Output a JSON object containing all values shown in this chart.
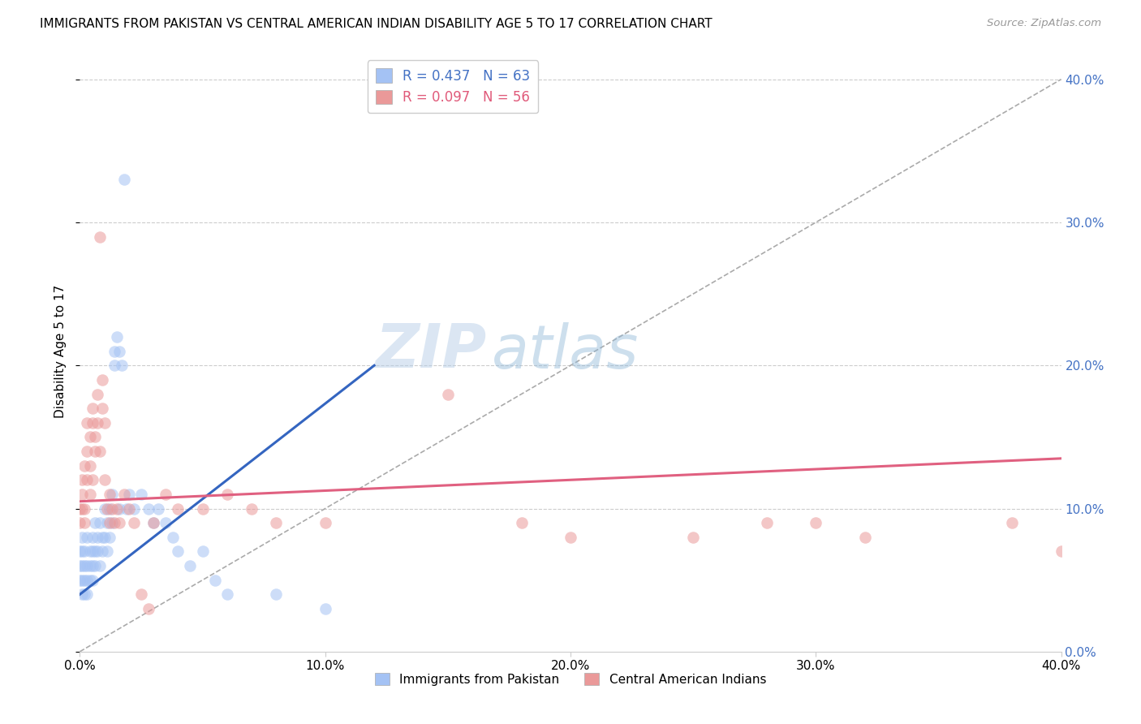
{
  "title": "IMMIGRANTS FROM PAKISTAN VS CENTRAL AMERICAN INDIAN DISABILITY AGE 5 TO 17 CORRELATION CHART",
  "source": "Source: ZipAtlas.com",
  "ylabel": "Disability Age 5 to 17",
  "xlim": [
    0.0,
    0.4
  ],
  "ylim": [
    0.0,
    0.42
  ],
  "grid_color": "#cccccc",
  "watermark_zip": "ZIP",
  "watermark_atlas": "atlas",
  "series1_color": "#a4c2f4",
  "series2_color": "#ea9999",
  "series1_label": "Immigrants from Pakistan",
  "series2_label": "Central American Indians",
  "series1_R": 0.437,
  "series1_N": 63,
  "series2_R": 0.097,
  "series2_N": 56,
  "diagonal_line_color": "#aaaaaa",
  "trendline1_color": "#3465c0",
  "trendline2_color": "#e06080",
  "trendline1_x0": 0.0,
  "trendline1_y0": 0.04,
  "trendline1_x1": 0.12,
  "trendline1_y1": 0.2,
  "trendline2_x0": 0.0,
  "trendline2_y0": 0.105,
  "trendline2_x1": 0.4,
  "trendline2_y1": 0.135,
  "blue_dots": [
    [
      0.0,
      0.07
    ],
    [
      0.0,
      0.05
    ],
    [
      0.0,
      0.06
    ],
    [
      0.001,
      0.06
    ],
    [
      0.001,
      0.05
    ],
    [
      0.001,
      0.04
    ],
    [
      0.001,
      0.07
    ],
    [
      0.001,
      0.08
    ],
    [
      0.002,
      0.05
    ],
    [
      0.002,
      0.06
    ],
    [
      0.002,
      0.04
    ],
    [
      0.002,
      0.07
    ],
    [
      0.003,
      0.06
    ],
    [
      0.003,
      0.05
    ],
    [
      0.003,
      0.08
    ],
    [
      0.003,
      0.04
    ],
    [
      0.004,
      0.07
    ],
    [
      0.004,
      0.06
    ],
    [
      0.004,
      0.05
    ],
    [
      0.005,
      0.08
    ],
    [
      0.005,
      0.07
    ],
    [
      0.005,
      0.06
    ],
    [
      0.005,
      0.05
    ],
    [
      0.006,
      0.09
    ],
    [
      0.006,
      0.07
    ],
    [
      0.006,
      0.06
    ],
    [
      0.007,
      0.08
    ],
    [
      0.007,
      0.07
    ],
    [
      0.008,
      0.09
    ],
    [
      0.008,
      0.06
    ],
    [
      0.009,
      0.08
    ],
    [
      0.009,
      0.07
    ],
    [
      0.01,
      0.1
    ],
    [
      0.01,
      0.08
    ],
    [
      0.011,
      0.09
    ],
    [
      0.011,
      0.07
    ],
    [
      0.012,
      0.1
    ],
    [
      0.012,
      0.08
    ],
    [
      0.013,
      0.11
    ],
    [
      0.013,
      0.09
    ],
    [
      0.014,
      0.21
    ],
    [
      0.014,
      0.2
    ],
    [
      0.015,
      0.22
    ],
    [
      0.016,
      0.21
    ],
    [
      0.016,
      0.1
    ],
    [
      0.017,
      0.2
    ],
    [
      0.018,
      0.33
    ],
    [
      0.019,
      0.1
    ],
    [
      0.02,
      0.11
    ],
    [
      0.022,
      0.1
    ],
    [
      0.025,
      0.11
    ],
    [
      0.028,
      0.1
    ],
    [
      0.03,
      0.09
    ],
    [
      0.032,
      0.1
    ],
    [
      0.035,
      0.09
    ],
    [
      0.038,
      0.08
    ],
    [
      0.04,
      0.07
    ],
    [
      0.045,
      0.06
    ],
    [
      0.05,
      0.07
    ],
    [
      0.055,
      0.05
    ],
    [
      0.06,
      0.04
    ],
    [
      0.08,
      0.04
    ],
    [
      0.1,
      0.03
    ]
  ],
  "pink_dots": [
    [
      0.0,
      0.1
    ],
    [
      0.0,
      0.09
    ],
    [
      0.001,
      0.11
    ],
    [
      0.001,
      0.1
    ],
    [
      0.001,
      0.12
    ],
    [
      0.002,
      0.1
    ],
    [
      0.002,
      0.09
    ],
    [
      0.002,
      0.13
    ],
    [
      0.003,
      0.16
    ],
    [
      0.003,
      0.14
    ],
    [
      0.003,
      0.12
    ],
    [
      0.004,
      0.15
    ],
    [
      0.004,
      0.13
    ],
    [
      0.004,
      0.11
    ],
    [
      0.005,
      0.17
    ],
    [
      0.005,
      0.16
    ],
    [
      0.005,
      0.12
    ],
    [
      0.006,
      0.15
    ],
    [
      0.006,
      0.14
    ],
    [
      0.007,
      0.18
    ],
    [
      0.007,
      0.16
    ],
    [
      0.008,
      0.14
    ],
    [
      0.008,
      0.29
    ],
    [
      0.009,
      0.17
    ],
    [
      0.009,
      0.19
    ],
    [
      0.01,
      0.16
    ],
    [
      0.01,
      0.12
    ],
    [
      0.011,
      0.1
    ],
    [
      0.012,
      0.11
    ],
    [
      0.012,
      0.09
    ],
    [
      0.013,
      0.1
    ],
    [
      0.014,
      0.09
    ],
    [
      0.015,
      0.1
    ],
    [
      0.016,
      0.09
    ],
    [
      0.018,
      0.11
    ],
    [
      0.02,
      0.1
    ],
    [
      0.022,
      0.09
    ],
    [
      0.025,
      0.04
    ],
    [
      0.028,
      0.03
    ],
    [
      0.03,
      0.09
    ],
    [
      0.035,
      0.11
    ],
    [
      0.04,
      0.1
    ],
    [
      0.05,
      0.1
    ],
    [
      0.06,
      0.11
    ],
    [
      0.07,
      0.1
    ],
    [
      0.08,
      0.09
    ],
    [
      0.1,
      0.09
    ],
    [
      0.15,
      0.18
    ],
    [
      0.18,
      0.09
    ],
    [
      0.2,
      0.08
    ],
    [
      0.25,
      0.08
    ],
    [
      0.28,
      0.09
    ],
    [
      0.3,
      0.09
    ],
    [
      0.32,
      0.08
    ],
    [
      0.38,
      0.09
    ],
    [
      0.4,
      0.07
    ]
  ]
}
